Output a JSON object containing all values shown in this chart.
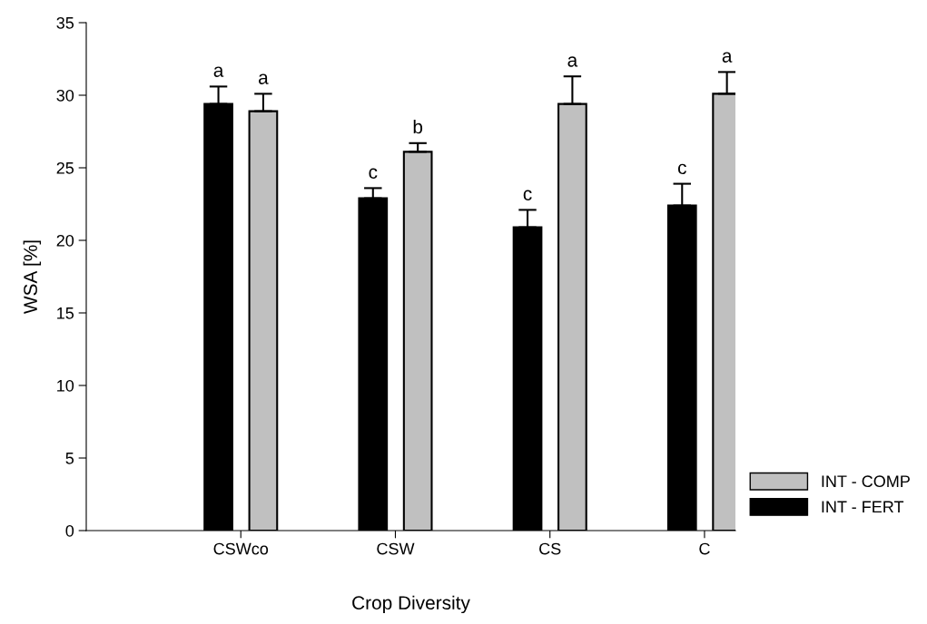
{
  "chart_data": {
    "type": "bar",
    "xlabel": "Crop Diversity",
    "ylabel": "WSA [%]",
    "categories": [
      "CSWco",
      "CSW",
      "CS",
      "C"
    ],
    "series": [
      {
        "name": "INT - FERT",
        "color": "#000000",
        "values": [
          29.4,
          22.9,
          20.9,
          22.4
        ],
        "errors": [
          1.2,
          0.7,
          1.2,
          1.5
        ],
        "value_labels": [
          "a",
          "c",
          "c",
          "c"
        ]
      },
      {
        "name": "INT - COMP",
        "color": "#c0c0c0",
        "values": [
          28.9,
          26.1,
          29.4,
          30.1
        ],
        "errors": [
          1.2,
          0.6,
          1.9,
          1.5
        ],
        "value_labels": [
          "a",
          "b",
          "a",
          "a"
        ]
      }
    ],
    "ylim": [
      0,
      35
    ],
    "yticks": [
      0,
      5,
      10,
      15,
      20,
      25,
      30,
      35
    ],
    "grid": false,
    "legend": "bottom right"
  }
}
